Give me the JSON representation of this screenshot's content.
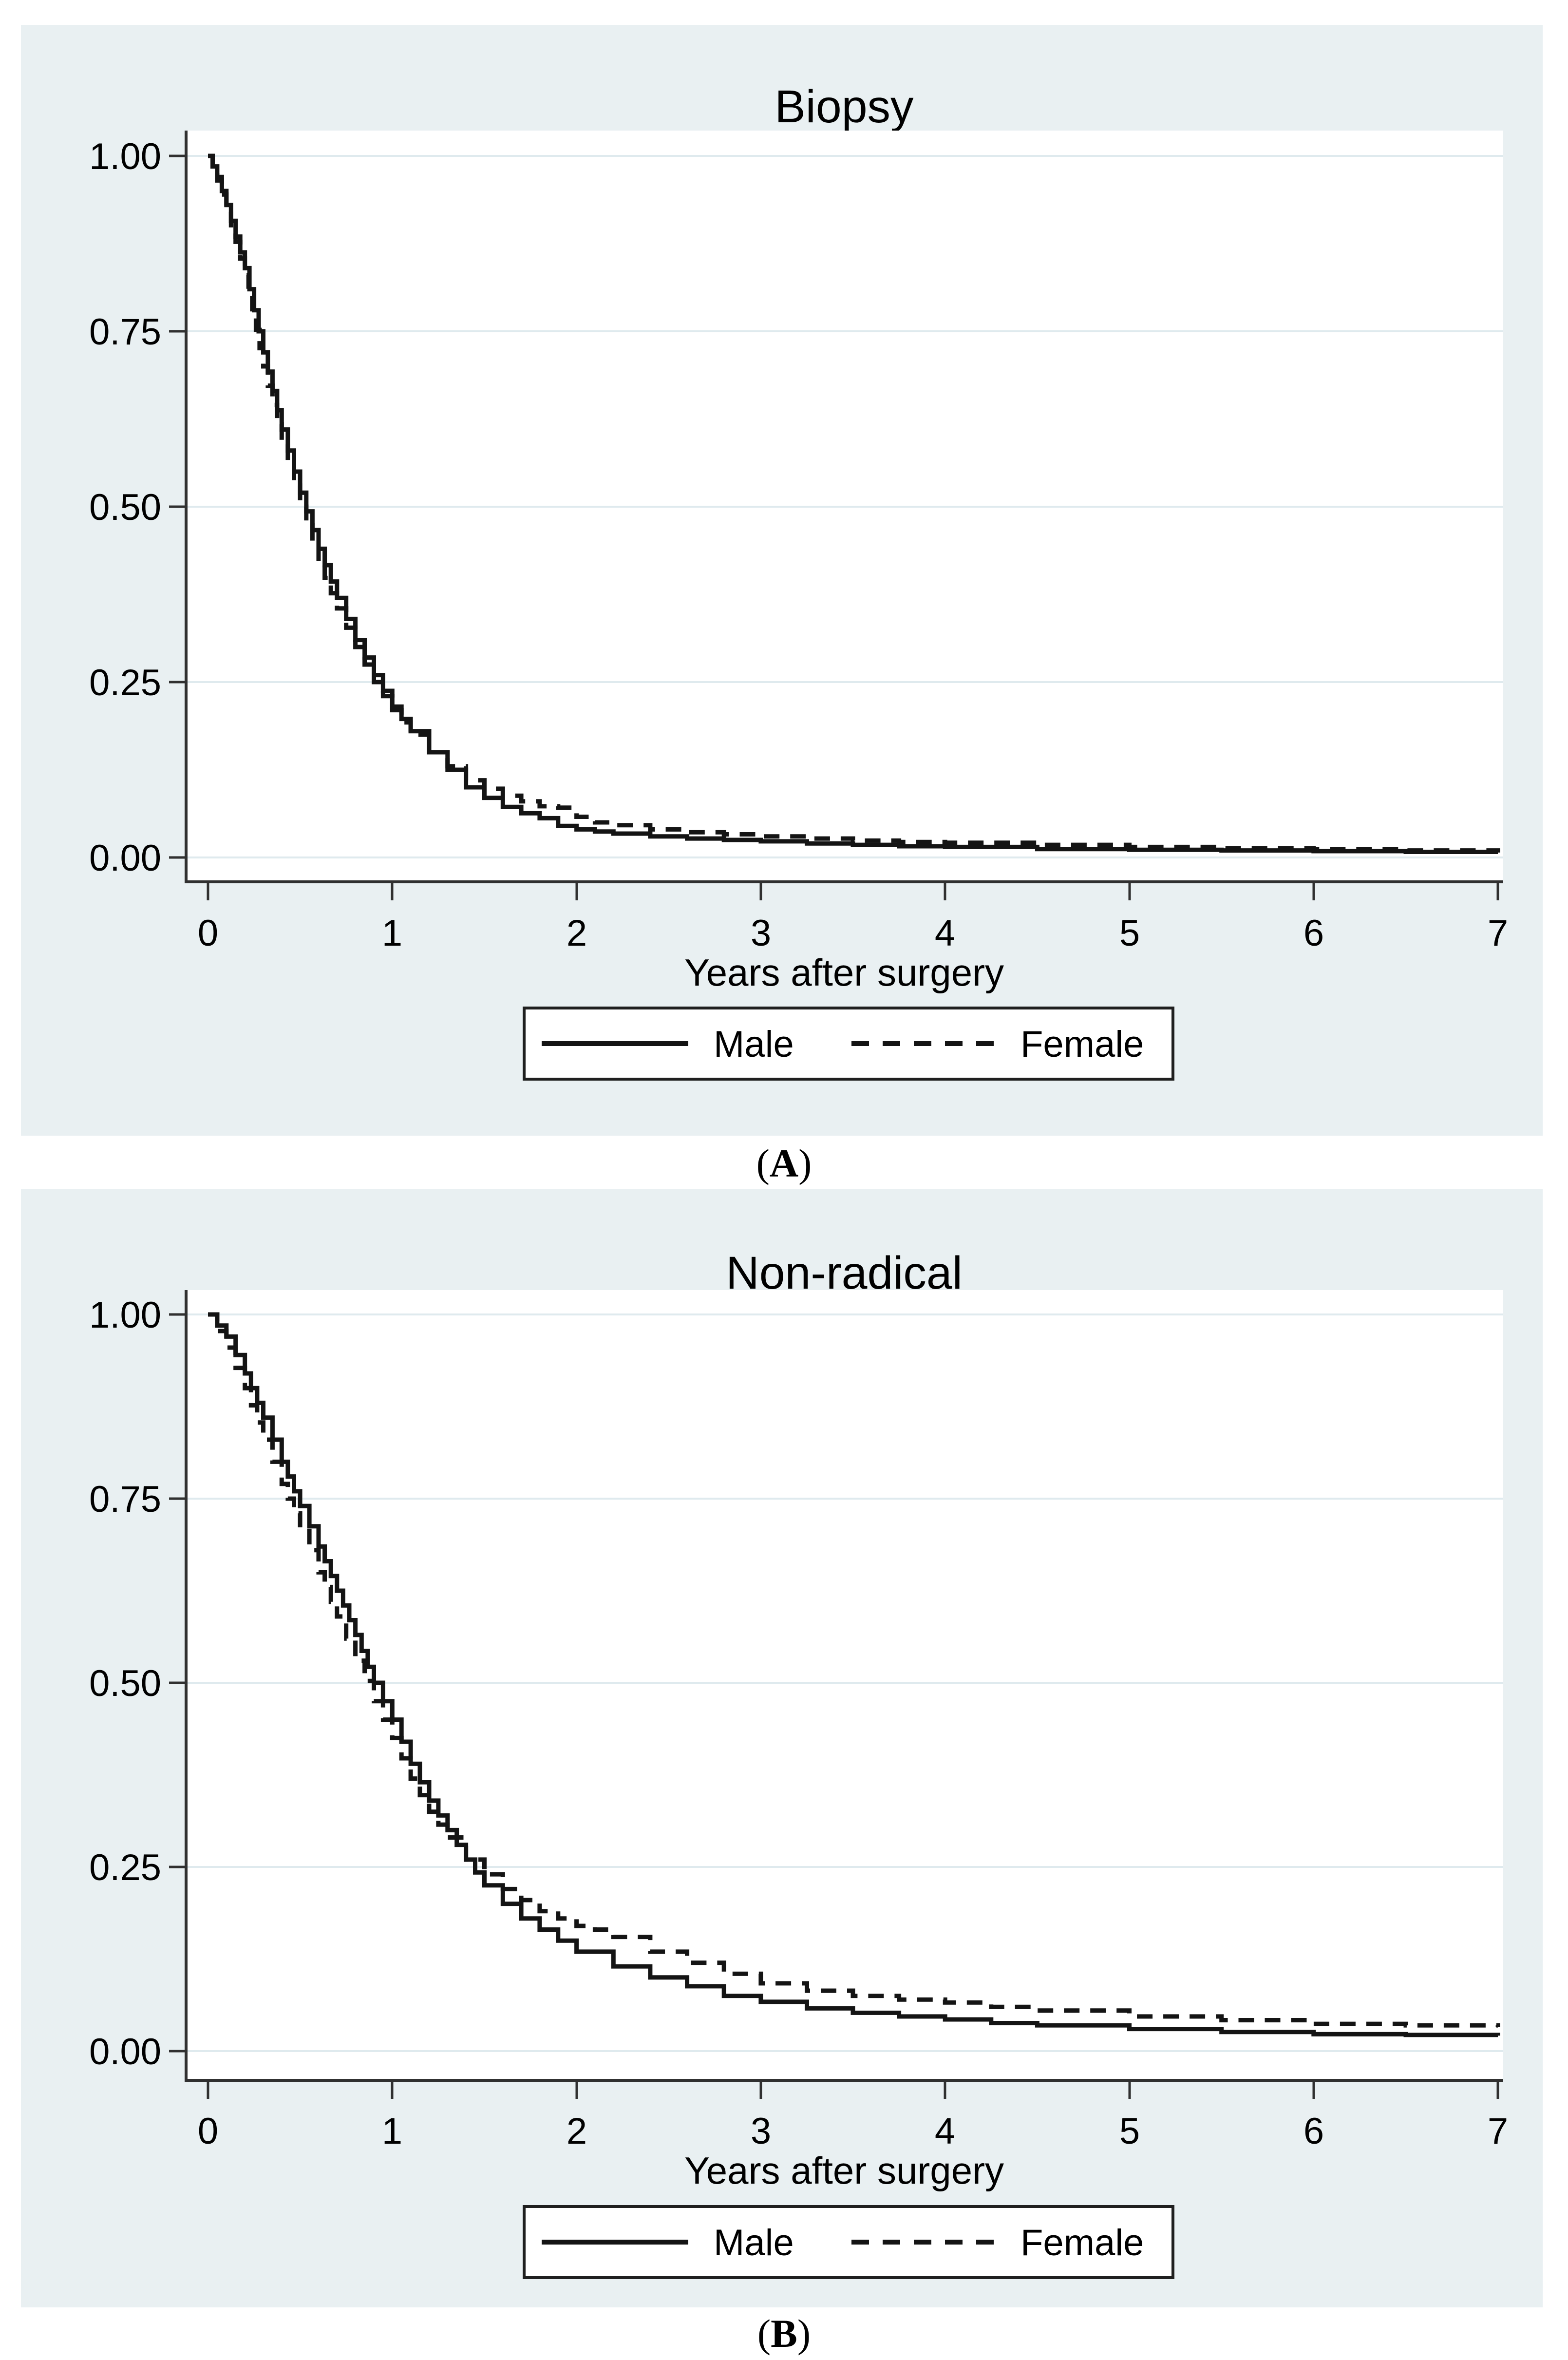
{
  "figure": {
    "background": "#ffffff",
    "panel_background": "#e9f0f2",
    "plot_background": "#ffffff",
    "grid_color": "#dfeaee",
    "axis_color": "#303030",
    "curve_color": "#141414",
    "legend_border_color": "#1f1f1f"
  },
  "panels": [
    {
      "title": "Biopsy",
      "y_axis": {
        "ticks": [
          "1.00",
          "0.75",
          "0.50",
          "0.25",
          "0.00"
        ]
      },
      "x_axis": {
        "ticks": [
          "0",
          "1",
          "2",
          "3",
          "4",
          "5",
          "6",
          "7"
        ],
        "label": "Years after surgery"
      },
      "legend": {
        "items": [
          {
            "label": "Male",
            "style": "solid"
          },
          {
            "label": "Female",
            "style": "dashed"
          }
        ]
      },
      "caption": {
        "open": "(",
        "letter": "A",
        "close": ")"
      }
    },
    {
      "title": "Non-radical",
      "y_axis": {
        "ticks": [
          "1.00",
          "0.75",
          "0.50",
          "0.25",
          "0.00"
        ]
      },
      "x_axis": {
        "ticks": [
          "0",
          "1",
          "2",
          "3",
          "4",
          "5",
          "6",
          "7"
        ],
        "label": "Years after surgery"
      },
      "legend": {
        "items": [
          {
            "label": "Male",
            "style": "solid"
          },
          {
            "label": "Female",
            "style": "dashed"
          }
        ]
      },
      "caption": {
        "open": "(",
        "letter": "B",
        "close": ")"
      }
    }
  ],
  "chart_data": [
    {
      "type": "line",
      "subtype": "kaplan-meier-step",
      "title": "Biopsy",
      "xlabel": "Years after surgery",
      "ylabel": "",
      "xlim": [
        0,
        7
      ],
      "ylim": [
        0,
        1
      ],
      "xticks": [
        0,
        1,
        2,
        3,
        4,
        5,
        6,
        7
      ],
      "yticks": [
        1.0,
        0.75,
        0.5,
        0.25,
        0.0
      ],
      "grid": "horizontal",
      "legend_position": "bottom",
      "series": [
        {
          "name": "Male",
          "line_style": "solid",
          "x": [
            0,
            0.05,
            0.1,
            0.2,
            0.3,
            0.4,
            0.5,
            0.6,
            0.7,
            0.8,
            0.9,
            1.0,
            1.1,
            1.2,
            1.3,
            1.4,
            1.5,
            1.6,
            1.7,
            1.8,
            1.9,
            2.0,
            2.1,
            2.2,
            2.4,
            2.6,
            2.8,
            3.0,
            3.25,
            3.5,
            3.75,
            4.0,
            4.5,
            5.0,
            5.5,
            6.0,
            6.5,
            7.0
          ],
          "y": [
            1.0,
            0.97,
            0.93,
            0.84,
            0.72,
            0.61,
            0.52,
            0.44,
            0.37,
            0.31,
            0.26,
            0.215,
            0.18,
            0.15,
            0.125,
            0.1,
            0.085,
            0.072,
            0.063,
            0.056,
            0.045,
            0.04,
            0.037,
            0.034,
            0.03,
            0.027,
            0.025,
            0.023,
            0.02,
            0.018,
            0.016,
            0.015,
            0.012,
            0.011,
            0.01,
            0.009,
            0.008,
            0.007
          ]
        },
        {
          "name": "Female",
          "line_style": "dashed",
          "x": [
            0,
            0.05,
            0.1,
            0.2,
            0.3,
            0.4,
            0.5,
            0.6,
            0.7,
            0.8,
            0.9,
            1.0,
            1.1,
            1.2,
            1.3,
            1.4,
            1.5,
            1.6,
            1.7,
            1.8,
            1.9,
            2.0,
            2.1,
            2.2,
            2.4,
            2.6,
            2.8,
            3.0,
            3.25,
            3.5,
            3.75,
            4.0,
            4.5,
            5.0,
            5.5,
            6.0,
            6.5,
            7.0
          ],
          "y": [
            1.0,
            0.965,
            0.925,
            0.83,
            0.7,
            0.59,
            0.5,
            0.42,
            0.355,
            0.3,
            0.25,
            0.21,
            0.175,
            0.15,
            0.13,
            0.11,
            0.098,
            0.088,
            0.08,
            0.073,
            0.071,
            0.058,
            0.05,
            0.046,
            0.04,
            0.036,
            0.033,
            0.03,
            0.027,
            0.024,
            0.022,
            0.021,
            0.018,
            0.015,
            0.013,
            0.012,
            0.01,
            0.009
          ]
        }
      ]
    },
    {
      "type": "line",
      "subtype": "kaplan-meier-step",
      "title": "Non-radical",
      "xlabel": "Years after surgery",
      "ylabel": "",
      "xlim": [
        0,
        7
      ],
      "ylim": [
        0,
        1
      ],
      "xticks": [
        0,
        1,
        2,
        3,
        4,
        5,
        6,
        7
      ],
      "yticks": [
        1.0,
        0.75,
        0.5,
        0.25,
        0.0
      ],
      "grid": "horizontal",
      "legend_position": "bottom",
      "series": [
        {
          "name": "Male",
          "line_style": "solid",
          "x": [
            0,
            0.1,
            0.2,
            0.3,
            0.4,
            0.5,
            0.6,
            0.7,
            0.8,
            0.9,
            1.0,
            1.1,
            1.2,
            1.3,
            1.4,
            1.5,
            1.6,
            1.7,
            1.8,
            1.9,
            2.0,
            2.2,
            2.4,
            2.6,
            2.8,
            3.0,
            3.25,
            3.5,
            3.75,
            4.0,
            4.25,
            4.5,
            5.0,
            5.5,
            6.0,
            6.5,
            7.0
          ],
          "y": [
            1.0,
            0.97,
            0.92,
            0.86,
            0.8,
            0.74,
            0.685,
            0.625,
            0.565,
            0.5,
            0.45,
            0.39,
            0.34,
            0.3,
            0.26,
            0.225,
            0.2,
            0.18,
            0.165,
            0.15,
            0.135,
            0.115,
            0.1,
            0.088,
            0.075,
            0.067,
            0.058,
            0.052,
            0.047,
            0.043,
            0.038,
            0.035,
            0.03,
            0.026,
            0.023,
            0.022,
            0.021
          ]
        },
        {
          "name": "Female",
          "line_style": "dashed",
          "x": [
            0,
            0.1,
            0.2,
            0.3,
            0.4,
            0.5,
            0.6,
            0.7,
            0.8,
            0.9,
            1.0,
            1.1,
            1.2,
            1.3,
            1.4,
            1.5,
            1.6,
            1.7,
            1.8,
            1.9,
            2.0,
            2.1,
            2.2,
            2.4,
            2.6,
            2.8,
            3.0,
            3.25,
            3.5,
            3.75,
            4.0,
            4.25,
            4.5,
            5.0,
            5.5,
            6.0,
            6.5,
            7.0
          ],
          "y": [
            1.0,
            0.955,
            0.9,
            0.83,
            0.77,
            0.71,
            0.65,
            0.59,
            0.53,
            0.475,
            0.425,
            0.37,
            0.325,
            0.29,
            0.26,
            0.24,
            0.22,
            0.205,
            0.19,
            0.18,
            0.17,
            0.165,
            0.155,
            0.135,
            0.12,
            0.105,
            0.092,
            0.082,
            0.075,
            0.07,
            0.066,
            0.06,
            0.055,
            0.047,
            0.042,
            0.037,
            0.035,
            0.033
          ]
        }
      ]
    }
  ]
}
